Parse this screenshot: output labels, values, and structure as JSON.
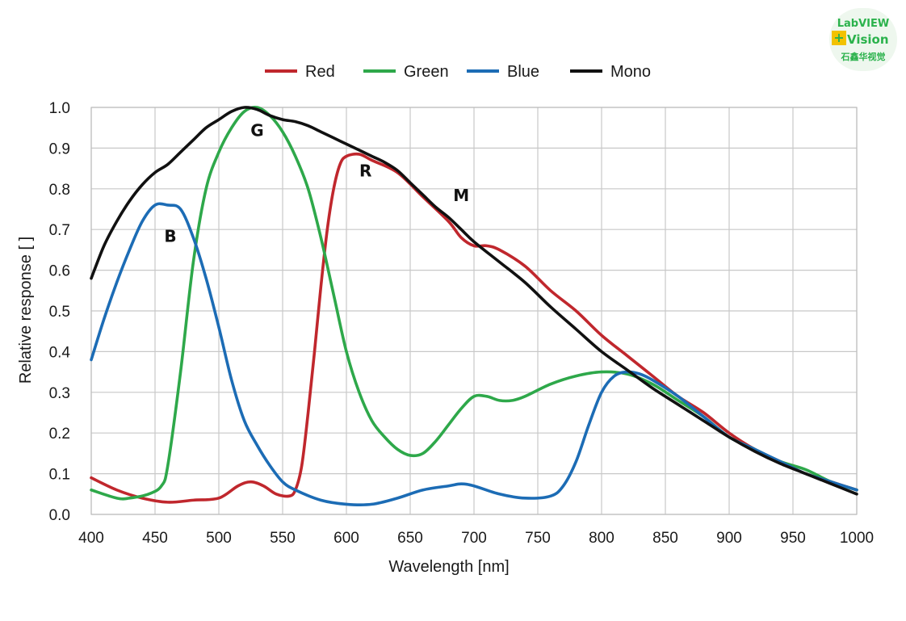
{
  "chart_data": {
    "type": "line",
    "title": "",
    "xlabel": "Wavelength [nm]",
    "ylabel": "Relative response [ ]",
    "xlim": [
      400,
      1000
    ],
    "ylim": [
      0,
      1
    ],
    "xticks": [
      400,
      450,
      500,
      550,
      600,
      650,
      700,
      750,
      800,
      850,
      900,
      950,
      1000
    ],
    "yticks": [
      "0.0",
      "0.1",
      "0.2",
      "0.3",
      "0.4",
      "0.5",
      "0.6",
      "0.7",
      "0.8",
      "0.9",
      "1.0"
    ],
    "grid": true,
    "legend_position": "top-center",
    "series": [
      {
        "name": "Red",
        "color": "#c0272d",
        "x": [
          400,
          420,
          440,
          460,
          480,
          500,
          515,
          525,
          535,
          545,
          555,
          560,
          565,
          570,
          575,
          580,
          585,
          590,
          595,
          600,
          610,
          620,
          640,
          660,
          680,
          690,
          700,
          710,
          720,
          740,
          760,
          780,
          800,
          820,
          840,
          860,
          880,
          900,
          920,
          940,
          960,
          980,
          1000
        ],
        "y": [
          0.09,
          0.06,
          0.04,
          0.03,
          0.035,
          0.04,
          0.07,
          0.08,
          0.07,
          0.05,
          0.045,
          0.06,
          0.12,
          0.25,
          0.4,
          0.56,
          0.7,
          0.8,
          0.86,
          0.88,
          0.885,
          0.87,
          0.84,
          0.78,
          0.72,
          0.68,
          0.66,
          0.66,
          0.65,
          0.61,
          0.55,
          0.5,
          0.44,
          0.39,
          0.34,
          0.29,
          0.25,
          0.2,
          0.16,
          0.13,
          0.1,
          0.08,
          0.06
        ]
      },
      {
        "name": "Green",
        "color": "#2ea84a",
        "x": [
          400,
          420,
          430,
          445,
          455,
          460,
          470,
          480,
          490,
          500,
          510,
          520,
          530,
          540,
          550,
          560,
          570,
          580,
          590,
          600,
          610,
          620,
          630,
          640,
          650,
          660,
          670,
          680,
          690,
          700,
          710,
          720,
          730,
          740,
          760,
          780,
          800,
          820,
          840,
          860,
          880,
          900,
          920,
          940,
          960,
          980,
          1000
        ],
        "y": [
          0.06,
          0.04,
          0.04,
          0.05,
          0.07,
          0.12,
          0.35,
          0.62,
          0.8,
          0.89,
          0.95,
          0.99,
          1.0,
          0.98,
          0.94,
          0.88,
          0.8,
          0.68,
          0.54,
          0.4,
          0.3,
          0.23,
          0.19,
          0.16,
          0.145,
          0.15,
          0.18,
          0.22,
          0.26,
          0.29,
          0.29,
          0.28,
          0.28,
          0.29,
          0.32,
          0.34,
          0.35,
          0.345,
          0.32,
          0.28,
          0.24,
          0.19,
          0.16,
          0.13,
          0.11,
          0.08,
          0.06
        ]
      },
      {
        "name": "Blue",
        "color": "#1c6cb5",
        "x": [
          400,
          410,
          420,
          430,
          440,
          450,
          460,
          470,
          480,
          490,
          500,
          510,
          520,
          530,
          540,
          550,
          560,
          580,
          600,
          620,
          640,
          660,
          680,
          690,
          700,
          720,
          740,
          760,
          770,
          780,
          790,
          800,
          810,
          820,
          830,
          840,
          860,
          880,
          900,
          920,
          940,
          960,
          980,
          1000
        ],
        "y": [
          0.38,
          0.48,
          0.57,
          0.65,
          0.72,
          0.76,
          0.76,
          0.75,
          0.68,
          0.58,
          0.46,
          0.33,
          0.23,
          0.17,
          0.12,
          0.08,
          0.06,
          0.035,
          0.025,
          0.025,
          0.04,
          0.06,
          0.07,
          0.075,
          0.07,
          0.05,
          0.04,
          0.045,
          0.07,
          0.13,
          0.22,
          0.3,
          0.34,
          0.35,
          0.345,
          0.33,
          0.29,
          0.24,
          0.19,
          0.16,
          0.13,
          0.1,
          0.08,
          0.06
        ]
      },
      {
        "name": "Mono",
        "color": "#111111",
        "x": [
          400,
          410,
          420,
          430,
          440,
          450,
          460,
          470,
          480,
          490,
          500,
          510,
          520,
          530,
          540,
          550,
          560,
          570,
          580,
          590,
          600,
          610,
          620,
          630,
          640,
          650,
          660,
          670,
          680,
          690,
          700,
          720,
          740,
          760,
          780,
          800,
          820,
          840,
          860,
          880,
          900,
          920,
          940,
          960,
          980,
          1000
        ],
        "y": [
          0.58,
          0.66,
          0.72,
          0.77,
          0.81,
          0.84,
          0.86,
          0.89,
          0.92,
          0.95,
          0.97,
          0.99,
          1.0,
          0.995,
          0.98,
          0.97,
          0.965,
          0.955,
          0.94,
          0.925,
          0.91,
          0.895,
          0.88,
          0.865,
          0.845,
          0.815,
          0.785,
          0.755,
          0.73,
          0.7,
          0.67,
          0.62,
          0.57,
          0.51,
          0.455,
          0.4,
          0.355,
          0.31,
          0.27,
          0.23,
          0.19,
          0.155,
          0.125,
          0.1,
          0.075,
          0.05
        ]
      }
    ],
    "annotations": [
      {
        "text": "G",
        "x": 530,
        "y": 0.93
      },
      {
        "text": "R",
        "x": 615,
        "y": 0.83
      },
      {
        "text": "M",
        "x": 690,
        "y": 0.77
      },
      {
        "text": "B",
        "x": 462,
        "y": 0.67
      }
    ]
  },
  "logo": {
    "line1": "LabVIEW",
    "line2": "Vision",
    "line3": "石鑫华视觉",
    "plus": "+"
  }
}
